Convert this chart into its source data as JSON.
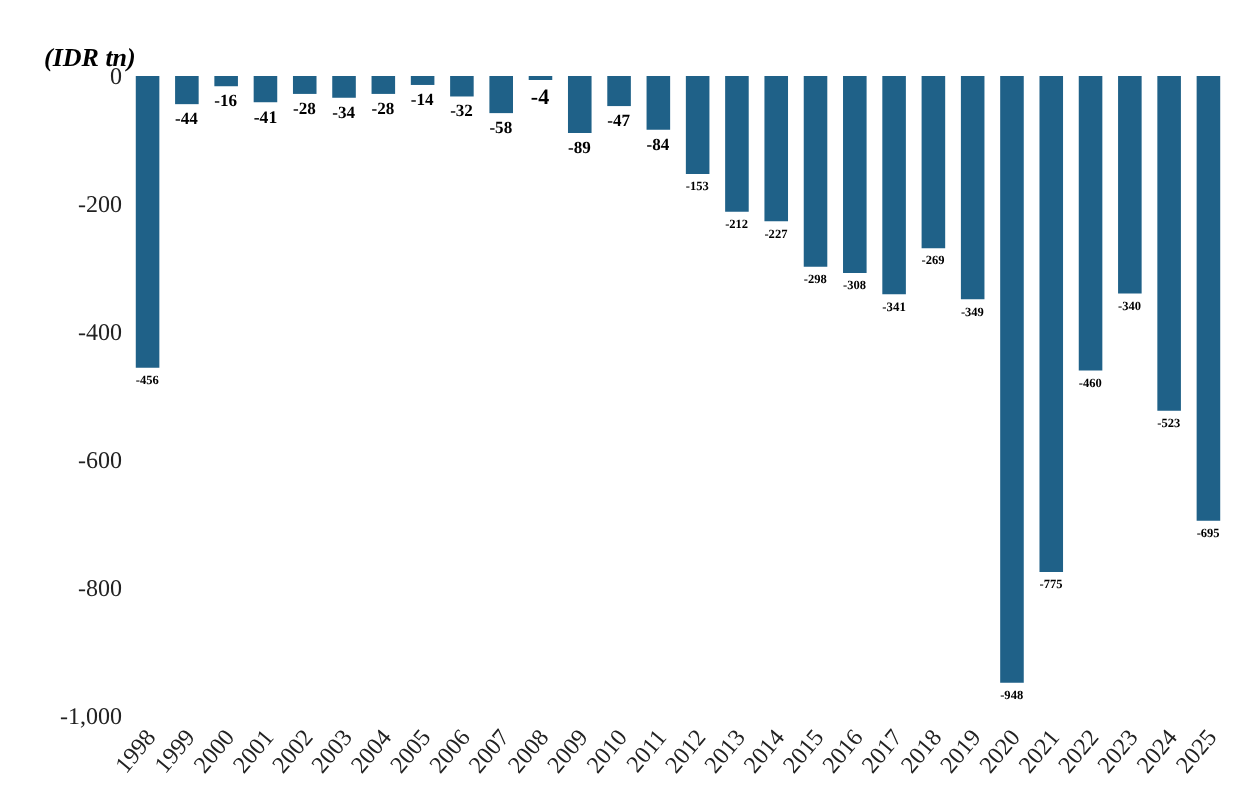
{
  "chart_data": {
    "type": "bar",
    "ylabel": "(IDR tn)",
    "categories": [
      "1998",
      "1999",
      "2000",
      "2001",
      "2002",
      "2003",
      "2004",
      "2005",
      "2006",
      "2007",
      "2008",
      "2009",
      "2010",
      "2011",
      "2012",
      "2013",
      "2014",
      "2015",
      "2016",
      "2017",
      "2018",
      "2019",
      "2020",
      "2021",
      "2022",
      "2023",
      "2024",
      "2025"
    ],
    "values": [
      -456,
      -44,
      -16,
      -41,
      -28,
      -34,
      -28,
      -14,
      -32,
      -58,
      -4,
      -89,
      -47,
      -84,
      -153,
      -212,
      -227,
      -298,
      -308,
      -341,
      -269,
      -349,
      -948,
      -775,
      -460,
      -340,
      -523,
      -695
    ],
    "color": "#1f6188",
    "ylim": [
      -1000,
      0
    ],
    "yticks": [
      {
        "value": -1000,
        "label": "-1,000"
      },
      -800,
      -600,
      -400,
      -200,
      0
    ],
    "data_labels": true,
    "grid": false,
    "legend": false
  }
}
